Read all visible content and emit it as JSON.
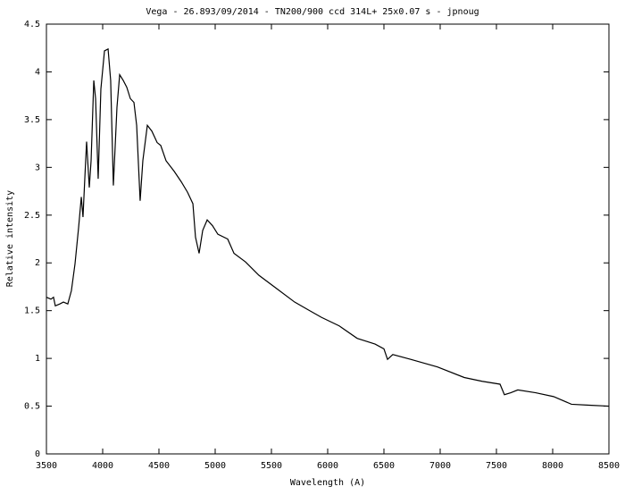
{
  "chart_data": {
    "type": "line",
    "title": "Vega - 26.893/09/2014 - TN200/900 ccd 314L+ 25x0.07 s - jpnoug",
    "x_label": "Wavelength (A)",
    "y_label": "Relative intensity",
    "xlim": [
      3500,
      8500
    ],
    "xticks": [
      3500,
      4000,
      4500,
      5000,
      5500,
      6000,
      6500,
      7000,
      7500,
      8000,
      8500
    ],
    "ylim": [
      0,
      4.5
    ],
    "yticks": [
      0,
      0.5,
      1,
      1.5,
      2,
      2.5,
      3,
      3.5,
      4,
      4.5
    ],
    "grid": false,
    "series": [
      {
        "color": "#000000",
        "x": [
          3500,
          3540,
          3563,
          3579,
          3619,
          3651,
          3690,
          3722,
          3754,
          3786,
          3810,
          3825,
          3841,
          3857,
          3881,
          3897,
          3921,
          3937,
          3960,
          3984,
          4016,
          4048,
          4071,
          4095,
          4127,
          4151,
          4183,
          4214,
          4246,
          4278,
          4302,
          4333,
          4357,
          4397,
          4437,
          4484,
          4516,
          4563,
          4635,
          4698,
          4754,
          4802,
          4825,
          4857,
          4889,
          4929,
          4976,
          5024,
          5111,
          5167,
          5270,
          5389,
          5548,
          5706,
          5825,
          5944,
          6103,
          6262,
          6421,
          6500,
          6532,
          6579,
          6738,
          6976,
          7214,
          7373,
          7532,
          7571,
          7627,
          7690,
          7849,
          8008,
          8167,
          8325,
          8500
        ],
        "values": [
          1.64,
          1.62,
          1.64,
          1.55,
          1.57,
          1.59,
          1.57,
          1.71,
          1.99,
          2.37,
          2.69,
          2.48,
          2.88,
          3.27,
          2.79,
          3.07,
          3.91,
          3.72,
          2.88,
          3.82,
          4.22,
          4.24,
          3.91,
          2.81,
          3.63,
          3.97,
          3.91,
          3.84,
          3.72,
          3.68,
          3.44,
          2.65,
          3.07,
          3.44,
          3.38,
          3.26,
          3.23,
          3.07,
          2.96,
          2.85,
          2.74,
          2.62,
          2.27,
          2.1,
          2.34,
          2.45,
          2.39,
          2.3,
          2.25,
          2.1,
          2.01,
          1.87,
          1.73,
          1.59,
          1.51,
          1.43,
          1.34,
          1.21,
          1.15,
          1.1,
          0.99,
          1.04,
          0.99,
          0.91,
          0.8,
          0.76,
          0.73,
          0.62,
          0.64,
          0.67,
          0.64,
          0.6,
          0.52,
          0.51,
          0.5
        ]
      }
    ]
  }
}
